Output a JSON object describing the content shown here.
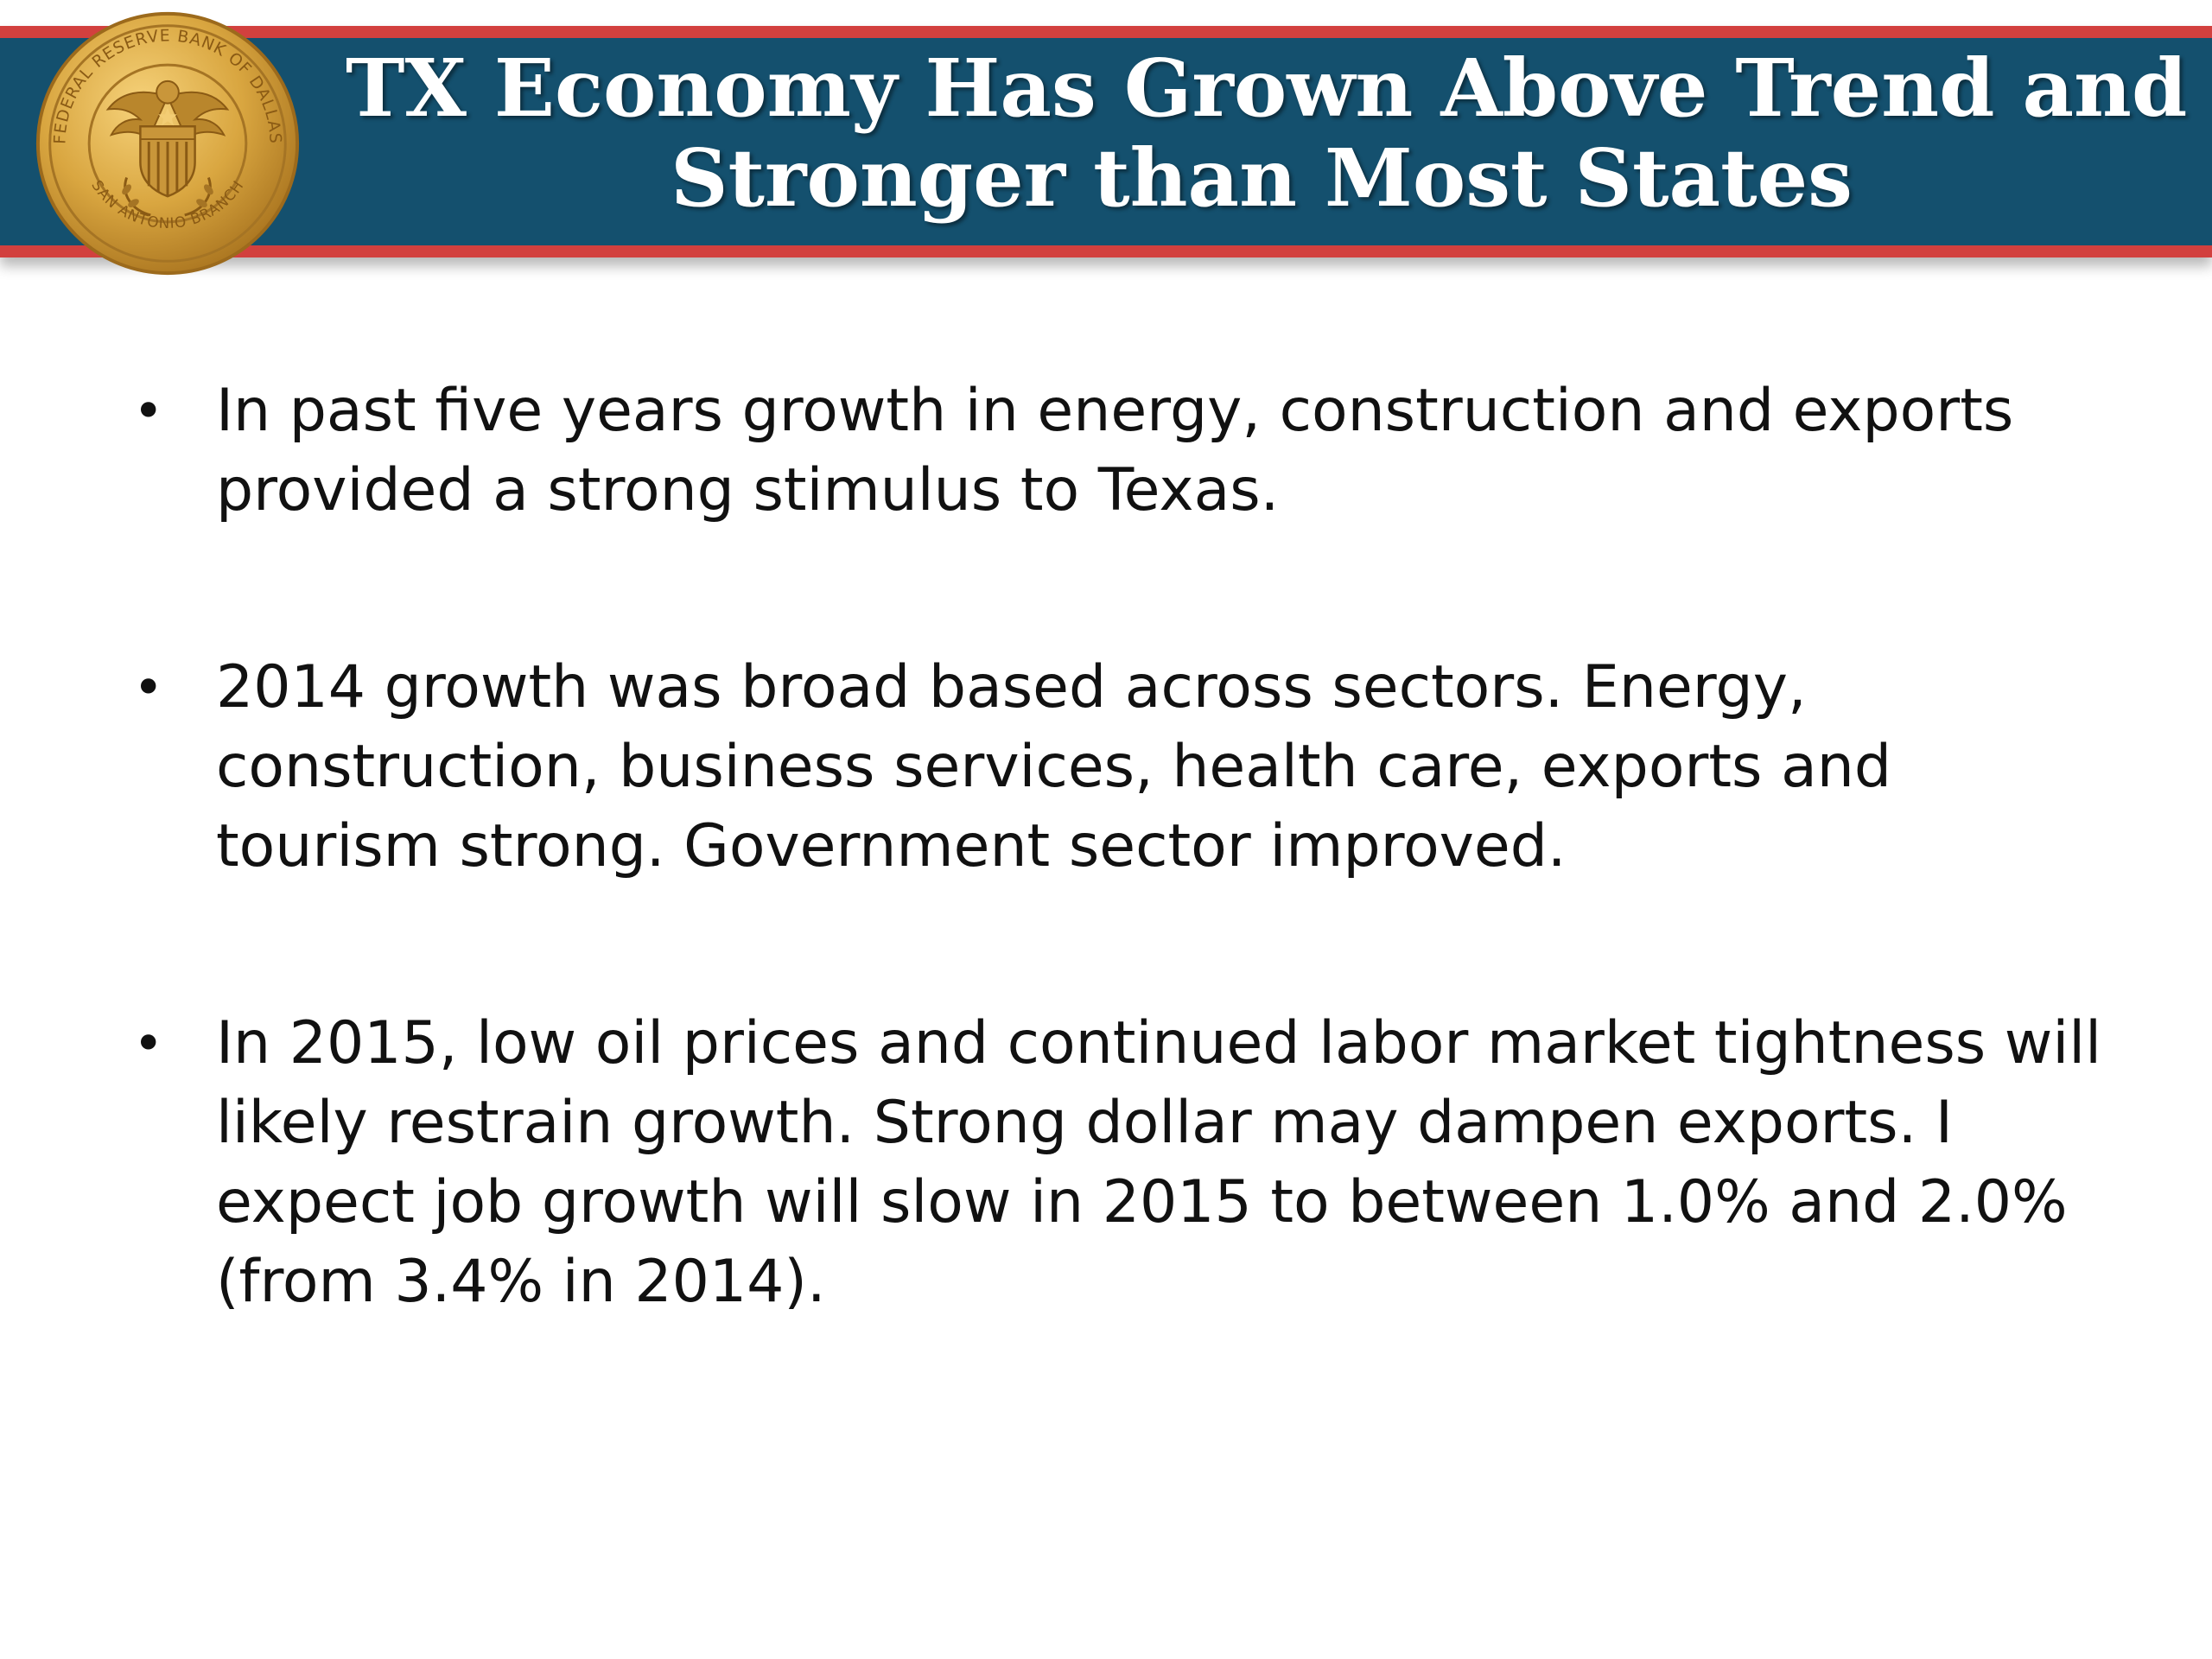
{
  "slide": {
    "title_lines": [
      "TX Economy Has Grown Above Trend and",
      "Stronger than Most States"
    ],
    "bullet_glyph": "•",
    "bullets": [
      {
        "text": "In past five years growth in energy, construction and exports provided a strong stimulus to Texas."
      },
      {
        "text": "2014 growth was broad based across sectors.  Energy, construction, business services, health care, exports and tourism strong.  Government sector improved."
      },
      {
        "text": "In 2015, low oil prices and continued labor market tightness will likely restrain growth.  Strong dollar may dampen exports.  I expect job growth will slow in 2015 to between 1.0% and 2.0% (from 3.4% in 2014)."
      }
    ]
  },
  "seal": {
    "icon": "federal-reserve-seal-icon",
    "inscription_top": "FEDERAL RESERVE BANK OF DALLAS",
    "inscription_bottom": "SAN ANTONIO BRANCH"
  },
  "colors": {
    "header_band": "#14506e",
    "header_stripe": "#d2403e",
    "seal_gold": "#d9a640",
    "body_text": "#111111"
  }
}
